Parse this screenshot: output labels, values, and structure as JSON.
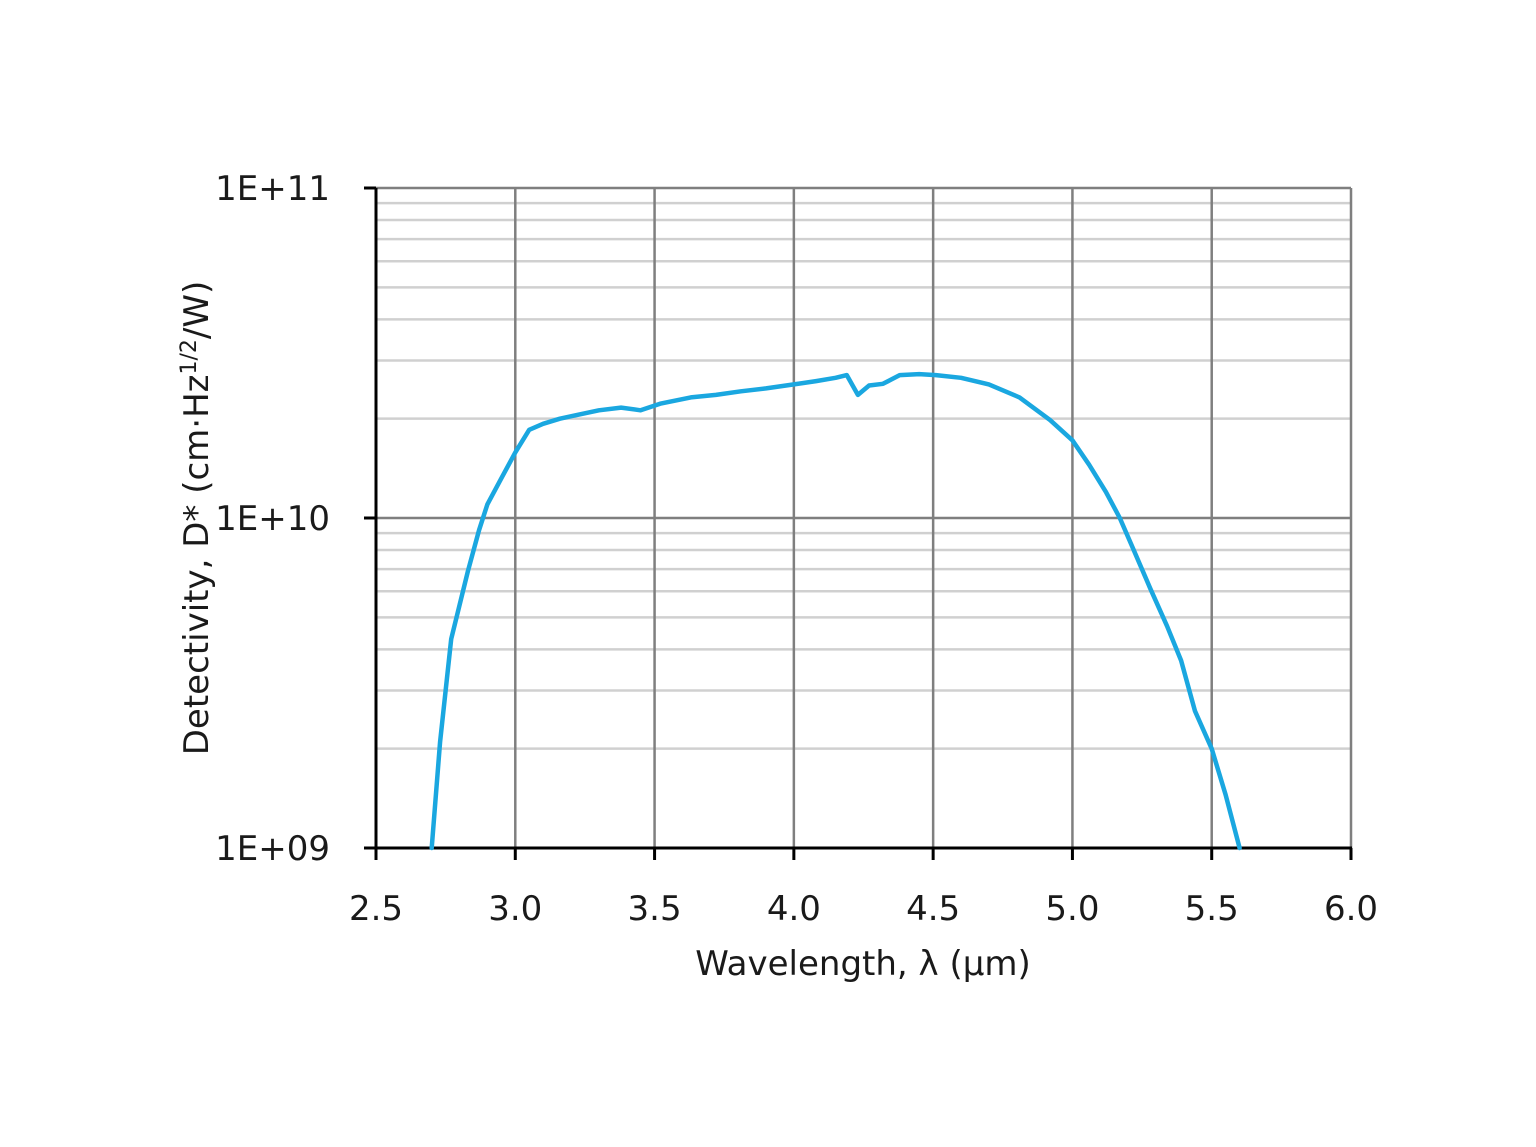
{
  "chart_data": {
    "type": "line",
    "title": "",
    "xlabel": "Wavelength, λ (µm)",
    "ylabel": "Detectivity, D* (cm·Hz1/2/W)",
    "ylabel_parts": {
      "main": "Detectivity, D* (cm·Hz",
      "sup": "1/2",
      "tail": "/W)"
    },
    "x_scale": "linear",
    "y_scale": "log",
    "xlim": [
      2.5,
      6.0
    ],
    "ylim": [
      1000000000.0,
      100000000000.0
    ],
    "x_ticks": [
      2.5,
      3.0,
      3.5,
      4.0,
      4.5,
      5.0,
      5.5,
      6.0
    ],
    "x_tick_labels": [
      "2.5",
      "3.0",
      "3.5",
      "4.0",
      "4.5",
      "5.0",
      "5.5",
      "6.0"
    ],
    "y_ticks": [
      1000000000.0,
      10000000000.0,
      100000000000.0
    ],
    "y_tick_labels": [
      "1E+09",
      "1E+10",
      "1E+11"
    ],
    "grid": {
      "major_x": true,
      "major_y": true,
      "minor_y": true
    },
    "legend": null,
    "series": [
      {
        "name": "D*",
        "color": "#1aa7e0",
        "x": [
          2.7,
          2.73,
          2.77,
          2.83,
          2.87,
          2.9,
          2.95,
          3.0,
          3.05,
          3.1,
          3.16,
          3.22,
          3.3,
          3.38,
          3.45,
          3.52,
          3.63,
          3.72,
          3.81,
          3.9,
          4.0,
          4.08,
          4.15,
          4.19,
          4.23,
          4.27,
          4.32,
          4.38,
          4.45,
          4.51,
          4.6,
          4.7,
          4.81,
          4.92,
          5.0,
          5.06,
          5.12,
          5.17,
          5.22,
          5.28,
          5.34,
          5.39,
          5.44,
          5.5,
          5.55,
          5.6
        ],
        "y": [
          1000000000.0,
          2100000000.0,
          4300000000.0,
          6900000000.0,
          9200000000.0,
          11000000000.0,
          13200000000.0,
          15800000000.0,
          18500000000.0,
          19300000000.0,
          20000000000.0,
          20500000000.0,
          21200000000.0,
          21600000000.0,
          21200000000.0,
          22200000000.0,
          23200000000.0,
          23600000000.0,
          24200000000.0,
          24700000000.0,
          25400000000.0,
          26000000000.0,
          26600000000.0,
          27100000000.0,
          23600000000.0,
          25200000000.0,
          25500000000.0,
          27100000000.0,
          27300000000.0,
          27100000000.0,
          26600000000.0,
          25400000000.0,
          23200000000.0,
          19800000000.0,
          17200000000.0,
          14500000000.0,
          12000000000.0,
          10000000000.0,
          8000000000.0,
          6100000000.0,
          4700000000.0,
          3700000000.0,
          2600000000.0,
          2000000000.0,
          1450000000.0,
          1000000000.0
        ]
      }
    ]
  },
  "colors": {
    "curve": "#1aa7e0",
    "axis": "#000000",
    "major_grid": "#7f7f7f",
    "minor_grid": "#d0d0d0",
    "text": "#1a1a1a"
  }
}
